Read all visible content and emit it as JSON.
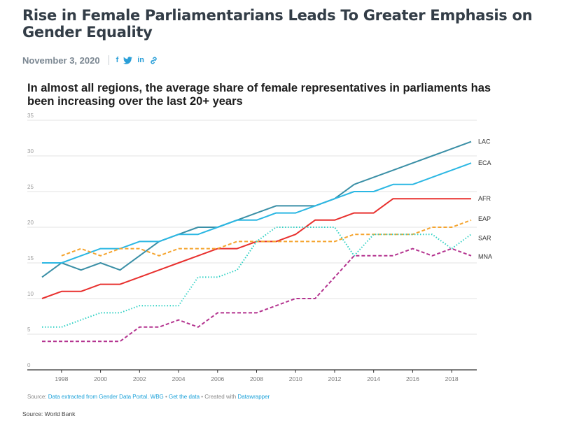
{
  "article": {
    "headline": "Rise in Female Parliamentarians Leads To Greater Emphasis on Gender Equality",
    "date": "November 3, 2020",
    "share_icons": [
      {
        "name": "facebook-icon",
        "glyph": "f"
      },
      {
        "name": "twitter-icon",
        "glyph": "🐦"
      },
      {
        "name": "linkedin-icon",
        "glyph": "in"
      },
      {
        "name": "link-icon",
        "glyph": "🔗"
      }
    ],
    "footer_source": "Source: World Bank"
  },
  "credit": {
    "prefix": "Source: ",
    "link1": "Data extracted from Gender Data Portal. WBG",
    "sep1": " • ",
    "link2": "Get the data",
    "sep2": " • Created with ",
    "link3": "Datawrapper"
  },
  "colors": {
    "LAC": "#3a8fa6",
    "ECA": "#2bb7e3",
    "AFR": "#e8302e",
    "EAP": "#f5a42e",
    "SAR": "#2fd1c4",
    "MNA": "#b4338f"
  },
  "chart_data": {
    "type": "line",
    "title": "In almost all regions, the average share of female representatives in parliaments has been increasing over the last 20+ years",
    "xlabel": "",
    "ylabel": "",
    "xlim": [
      1997,
      2019
    ],
    "ylim": [
      0,
      35
    ],
    "yticks": [
      0,
      5,
      10,
      15,
      20,
      25,
      30,
      35
    ],
    "xticks": [
      1998,
      2000,
      2002,
      2004,
      2006,
      2008,
      2010,
      2012,
      2014,
      2016,
      2018
    ],
    "grid": true,
    "legend": "line-end labels",
    "x": [
      1997,
      1998,
      1999,
      2000,
      2001,
      2002,
      2003,
      2004,
      2005,
      2006,
      2007,
      2008,
      2009,
      2010,
      2011,
      2012,
      2013,
      2014,
      2015,
      2016,
      2017,
      2018,
      2019
    ],
    "series": [
      {
        "name": "LAC",
        "style": "solid",
        "values": [
          13,
          15,
          14,
          15,
          14,
          16,
          18,
          19,
          20,
          20,
          21,
          22,
          23,
          23,
          23,
          24,
          26,
          27,
          28,
          29,
          30,
          31,
          32
        ]
      },
      {
        "name": "ECA",
        "style": "solid",
        "values": [
          15,
          15,
          16,
          17,
          17,
          18,
          18,
          19,
          19,
          20,
          21,
          21,
          22,
          22,
          23,
          24,
          25,
          25,
          26,
          26,
          27,
          28,
          29
        ]
      },
      {
        "name": "AFR",
        "style": "solid",
        "values": [
          10,
          11,
          11,
          12,
          12,
          13,
          14,
          15,
          16,
          17,
          17,
          18,
          18,
          19,
          21,
          21,
          22,
          22,
          24,
          24,
          24,
          24,
          24
        ]
      },
      {
        "name": "EAP",
        "style": "dashed",
        "values": [
          null,
          16,
          17,
          16,
          17,
          17,
          16,
          17,
          17,
          17,
          18,
          18,
          18,
          18,
          18,
          18,
          19,
          19,
          19,
          19,
          20,
          20,
          21
        ]
      },
      {
        "name": "SAR",
        "style": "dotted",
        "values": [
          6,
          6,
          7,
          8,
          8,
          9,
          9,
          9,
          13,
          13,
          14,
          18,
          20,
          20,
          20,
          20,
          16,
          19,
          19,
          19,
          19,
          17,
          19
        ]
      },
      {
        "name": "MNA",
        "style": "dashed",
        "values": [
          4,
          4,
          4,
          4,
          4,
          6,
          6,
          7,
          6,
          8,
          8,
          8,
          9,
          10,
          10,
          13,
          16,
          16,
          16,
          17,
          16,
          17,
          16
        ]
      }
    ]
  }
}
